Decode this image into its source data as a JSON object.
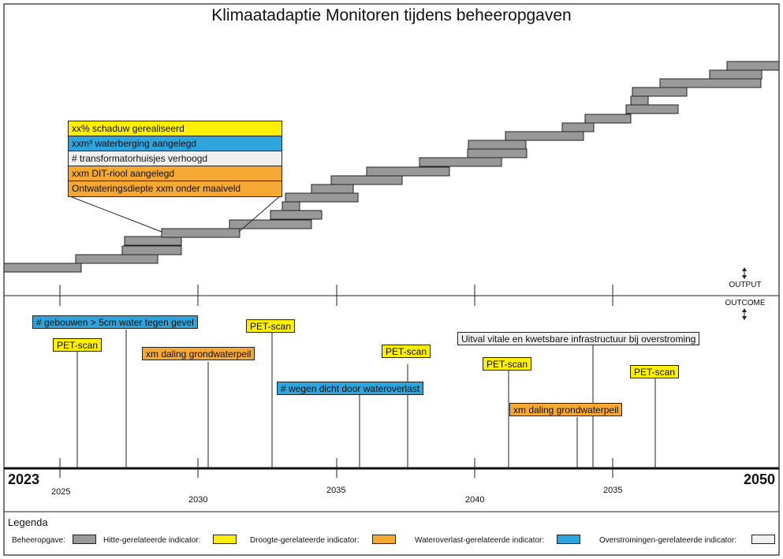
{
  "title": "Klimaatadaptie Monitoren tijdens beheeropgaven",
  "axis": {
    "output_label": "OUTPUT",
    "outcome_label": "OUTCOME",
    "start_year": "2023",
    "end_year": "2050",
    "tick_labels": [
      "2025",
      "2030",
      "2035",
      "2040",
      "2035"
    ]
  },
  "callout": {
    "items": [
      {
        "text": "xx% schaduw gerealiseerd",
        "type": "heat"
      },
      {
        "text": "xxm³ waterberging aangelegd",
        "type": "water"
      },
      {
        "text": "# transformatorhuisjes verhoogd",
        "type": "flood"
      },
      {
        "text": "xxm DIT-riool aangelegd",
        "type": "drought"
      },
      {
        "text": "Ontwateringsdiepte xxm onder maaiveld",
        "type": "drought"
      }
    ]
  },
  "indicators": [
    {
      "text": "# gebouwen > 5cm water tegen gevel",
      "type": "water"
    },
    {
      "text": "PET-scan",
      "type": "heat"
    },
    {
      "text": "xm daling grondwaterpeil",
      "type": "drought"
    },
    {
      "text": "PET-scan",
      "type": "heat"
    },
    {
      "text": "# wegen dicht door wateroverlast",
      "type": "water"
    },
    {
      "text": "PET-scan",
      "type": "heat"
    },
    {
      "text": "Uitval vitale en kwetsbare infrastructuur bij overstroming",
      "type": "flood"
    },
    {
      "text": "PET-scan",
      "type": "heat"
    },
    {
      "text": "xm daling grondwaterpeil",
      "type": "drought"
    },
    {
      "text": "PET-scan",
      "type": "heat"
    }
  ],
  "legend": {
    "title": "Legenda",
    "items": [
      {
        "label": "Beheeropgave:",
        "color": "#999999"
      },
      {
        "label": "Hitte-gerelateerde indicator:",
        "color": "#ffef00"
      },
      {
        "label": "Droogte-gerelateerde indicator:",
        "color": "#f5a834"
      },
      {
        "label": "Wateroverlast-gerelateerde indicator:",
        "color": "#2ea3dc"
      },
      {
        "label": "Overstromingen-gerelateerde indicator:",
        "color": "#efefef"
      }
    ]
  }
}
